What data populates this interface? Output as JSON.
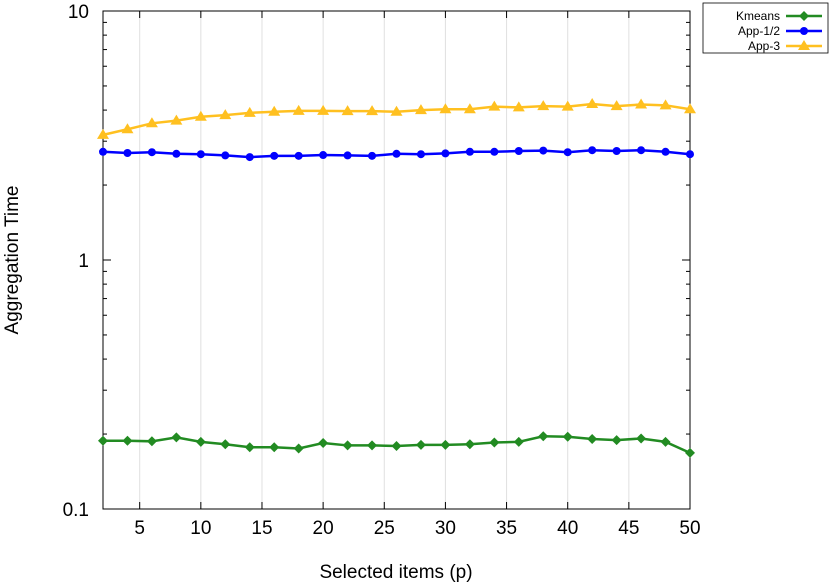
{
  "chart_data": {
    "type": "line",
    "xlabel": "Selected items (p)",
    "ylabel": "Aggregation Time",
    "xlim": [
      2,
      50
    ],
    "ylim": [
      0.1,
      10
    ],
    "yscale": "log",
    "grid": "vertical",
    "legend": "top-right, outside plot",
    "xticks": [
      5,
      10,
      15,
      20,
      25,
      30,
      35,
      40,
      45,
      50
    ],
    "yticks": [
      {
        "v": 0.1,
        "label": "0.1"
      },
      {
        "v": 1,
        "label": "1"
      },
      {
        "v": 10,
        "label": "10"
      }
    ],
    "x": [
      2,
      4,
      6,
      8,
      10,
      12,
      14,
      16,
      18,
      20,
      22,
      24,
      26,
      28,
      30,
      32,
      34,
      36,
      38,
      40,
      42,
      44,
      46,
      48,
      50
    ],
    "series": [
      {
        "name": "Kmeans",
        "color": "#228b22",
        "marker": "diamond",
        "values": [
          0.188,
          0.188,
          0.187,
          0.194,
          0.186,
          0.182,
          0.177,
          0.177,
          0.175,
          0.184,
          0.18,
          0.18,
          0.179,
          0.181,
          0.181,
          0.182,
          0.185,
          0.186,
          0.196,
          0.195,
          0.191,
          0.189,
          0.192,
          0.186,
          0.168
        ]
      },
      {
        "name": "App-1/2",
        "color": "#0000ff",
        "marker": "circle",
        "values": [
          2.72,
          2.69,
          2.71,
          2.67,
          2.66,
          2.63,
          2.59,
          2.62,
          2.62,
          2.64,
          2.63,
          2.62,
          2.67,
          2.66,
          2.68,
          2.72,
          2.72,
          2.74,
          2.75,
          2.71,
          2.76,
          2.74,
          2.76,
          2.72,
          2.66
        ]
      },
      {
        "name": "App-3",
        "color": "#ffc020",
        "marker": "triangle",
        "values": [
          3.18,
          3.35,
          3.54,
          3.63,
          3.76,
          3.82,
          3.9,
          3.94,
          3.97,
          3.97,
          3.96,
          3.96,
          3.94,
          4.0,
          4.03,
          4.03,
          4.13,
          4.1,
          4.15,
          4.13,
          4.23,
          4.15,
          4.21,
          4.18,
          4.03
        ]
      }
    ]
  }
}
